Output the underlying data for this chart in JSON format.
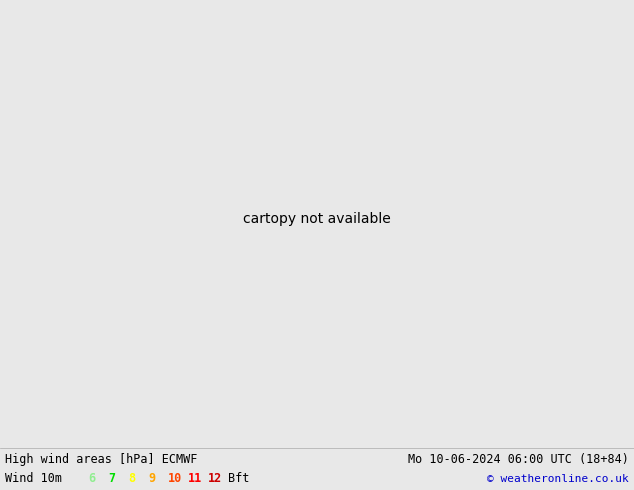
{
  "title_left": "High wind areas [hPa] ECMWF",
  "title_right": "Mo 10-06-2024 06:00 UTC (18+84)",
  "subtitle_left": "Wind 10m",
  "subtitle_right": "© weatheronline.co.uk",
  "wind_levels": [
    "6",
    "7",
    "8",
    "9",
    "10",
    "11",
    "12",
    "Bft"
  ],
  "wind_colors": [
    "#90ee90",
    "#00dd00",
    "#ffff00",
    "#ffa500",
    "#ff4500",
    "#ff0000",
    "#cc0000"
  ],
  "bg_color": "#e8e8e8",
  "land_color": "#e8f4e0",
  "ocean_color": "#e0e8f0",
  "bottom_bar_color": "#ffffff",
  "blue_line_color": "#4444ff",
  "red_line_color": "#ff2222",
  "black_line_color": "#000000",
  "green_fill_light": "#c8ecc8",
  "green_fill_mid": "#90d890",
  "green_fill_dark": "#44bb44",
  "figsize": [
    6.34,
    4.9
  ],
  "dpi": 100,
  "extent": [
    -175,
    -50,
    20,
    75
  ],
  "map_proj_lon": -110,
  "map_proj_lat": 50
}
